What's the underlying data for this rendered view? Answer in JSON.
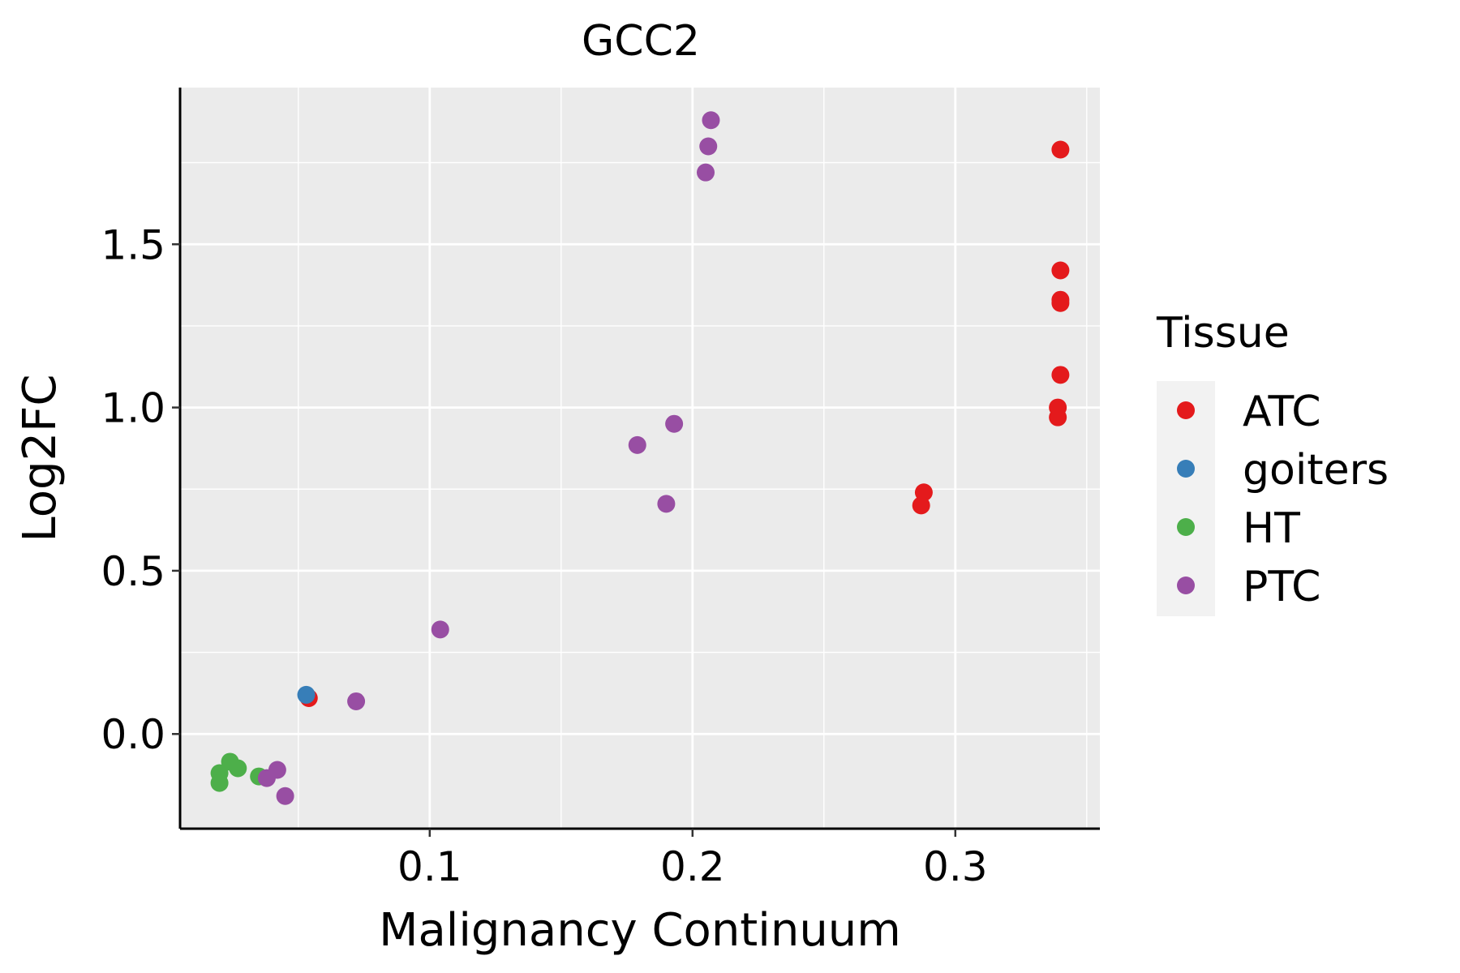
{
  "chart_data": {
    "type": "scatter",
    "title": "GCC2",
    "xlabel": "Malignancy Continuum",
    "ylabel": "Log2FC",
    "xlim": [
      0.005,
      0.355
    ],
    "ylim": [
      -0.29,
      1.98
    ],
    "x_ticks": [
      0.1,
      0.2,
      0.3
    ],
    "x_tick_labels": [
      "0.1",
      "0.2",
      "0.3"
    ],
    "x_minor_ticks": [
      0.05,
      0.15,
      0.25,
      0.35
    ],
    "y_ticks": [
      0.0,
      0.5,
      1.0,
      1.5
    ],
    "y_tick_labels": [
      "0.0",
      "0.5",
      "1.0",
      "1.5"
    ],
    "y_minor_ticks": [
      0.25,
      0.75,
      1.25,
      1.75
    ],
    "grid": true,
    "legend": {
      "title": "Tissue",
      "position": "right"
    },
    "series": [
      {
        "name": "ATC",
        "color": "#E41A1C",
        "points": [
          {
            "x": 0.34,
            "y": 1.79
          },
          {
            "x": 0.34,
            "y": 1.42
          },
          {
            "x": 0.34,
            "y": 1.33
          },
          {
            "x": 0.34,
            "y": 1.32
          },
          {
            "x": 0.34,
            "y": 1.1
          },
          {
            "x": 0.339,
            "y": 1.0
          },
          {
            "x": 0.339,
            "y": 0.97
          },
          {
            "x": 0.288,
            "y": 0.74
          },
          {
            "x": 0.287,
            "y": 0.7
          },
          {
            "x": 0.054,
            "y": 0.11
          }
        ]
      },
      {
        "name": "goiters",
        "color": "#377EB8",
        "points": [
          {
            "x": 0.053,
            "y": 0.12
          }
        ]
      },
      {
        "name": "HT",
        "color": "#4DAF4A",
        "points": [
          {
            "x": 0.024,
            "y": -0.085
          },
          {
            "x": 0.027,
            "y": -0.105
          },
          {
            "x": 0.02,
            "y": -0.12
          },
          {
            "x": 0.02,
            "y": -0.15
          },
          {
            "x": 0.035,
            "y": -0.13
          }
        ]
      },
      {
        "name": "PTC",
        "color": "#984EA3",
        "points": [
          {
            "x": 0.207,
            "y": 1.88
          },
          {
            "x": 0.206,
            "y": 1.8
          },
          {
            "x": 0.205,
            "y": 1.72
          },
          {
            "x": 0.193,
            "y": 0.95
          },
          {
            "x": 0.179,
            "y": 0.885
          },
          {
            "x": 0.19,
            "y": 0.705
          },
          {
            "x": 0.104,
            "y": 0.32
          },
          {
            "x": 0.072,
            "y": 0.1
          },
          {
            "x": 0.042,
            "y": -0.11
          },
          {
            "x": 0.038,
            "y": -0.135
          },
          {
            "x": 0.045,
            "y": -0.19
          }
        ]
      }
    ]
  }
}
